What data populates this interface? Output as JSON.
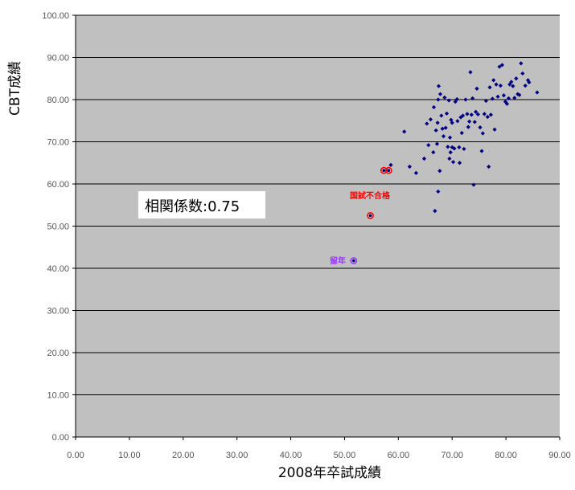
{
  "chart_data": {
    "type": "scatter",
    "xlabel": "2008年卒試成績",
    "ylabel": "CBT成績",
    "xlim": [
      0,
      90
    ],
    "ylim": [
      0,
      100
    ],
    "x_ticks": [
      "0.00",
      "10.00",
      "20.00",
      "30.00",
      "40.00",
      "50.00",
      "60.00",
      "70.00",
      "80.00",
      "90.00"
    ],
    "y_ticks": [
      "0.00",
      "10.00",
      "20.00",
      "30.00",
      "40.00",
      "50.00",
      "60.00",
      "70.00",
      "80.00",
      "90.00",
      "100.00"
    ],
    "grid": "horizontal",
    "plot_background": "#c0c0c0",
    "point_color": "#000080",
    "highlight_color": "#ff0000",
    "repeat_color": "#9933ff",
    "annotation": "相関係数:0.75",
    "points": [
      [
        58.6,
        64.5
      ],
      [
        61.1,
        72.4
      ],
      [
        62.1,
        64.1
      ],
      [
        63.3,
        62.6
      ],
      [
        64.8,
        66.0
      ],
      [
        65.3,
        74.3
      ],
      [
        65.6,
        69.2
      ],
      [
        66.0,
        75.3
      ],
      [
        66.5,
        67.5
      ],
      [
        66.6,
        78.2
      ],
      [
        66.8,
        53.6
      ],
      [
        67.0,
        72.7
      ],
      [
        67.2,
        69.5
      ],
      [
        67.3,
        74.5
      ],
      [
        67.4,
        58.2
      ],
      [
        67.4,
        80.0
      ],
      [
        67.5,
        83.2
      ],
      [
        67.7,
        63.1
      ],
      [
        67.8,
        81.3
      ],
      [
        68.0,
        76.2
      ],
      [
        68.2,
        73.1
      ],
      [
        68.4,
        71.3
      ],
      [
        68.6,
        80.5
      ],
      [
        68.8,
        73.3
      ],
      [
        69.0,
        76.7
      ],
      [
        69.2,
        68.8
      ],
      [
        69.4,
        79.8
      ],
      [
        69.5,
        66.0
      ],
      [
        69.6,
        71.0
      ],
      [
        69.7,
        67.5
      ],
      [
        69.8,
        75.2
      ],
      [
        70.0,
        68.7
      ],
      [
        70.0,
        74.5
      ],
      [
        70.2,
        65.2
      ],
      [
        70.4,
        68.4
      ],
      [
        70.6,
        79.5
      ],
      [
        70.9,
        80.1
      ],
      [
        71.0,
        74.9
      ],
      [
        71.3,
        68.7
      ],
      [
        71.4,
        65.0
      ],
      [
        71.6,
        75.8
      ],
      [
        71.8,
        72.1
      ],
      [
        72.0,
        76.2
      ],
      [
        72.2,
        68.3
      ],
      [
        72.5,
        80.0
      ],
      [
        72.8,
        76.6
      ],
      [
        73.0,
        73.5
      ],
      [
        73.2,
        74.8
      ],
      [
        73.4,
        86.5
      ],
      [
        73.6,
        76.4
      ],
      [
        73.8,
        80.3
      ],
      [
        74.0,
        59.8
      ],
      [
        74.2,
        74.7
      ],
      [
        74.4,
        77.1
      ],
      [
        74.6,
        82.6
      ],
      [
        74.8,
        76.5
      ],
      [
        75.2,
        73.4
      ],
      [
        75.5,
        67.8
      ],
      [
        75.7,
        72.0
      ],
      [
        76.0,
        76.6
      ],
      [
        76.3,
        79.7
      ],
      [
        76.6,
        75.9
      ],
      [
        76.8,
        64.1
      ],
      [
        77.0,
        82.9
      ],
      [
        77.2,
        76.4
      ],
      [
        77.5,
        80.2
      ],
      [
        77.7,
        84.6
      ],
      [
        77.9,
        72.9
      ],
      [
        78.2,
        83.6
      ],
      [
        78.5,
        80.7
      ],
      [
        78.8,
        87.8
      ],
      [
        79.0,
        83.3
      ],
      [
        79.3,
        88.2
      ],
      [
        79.6,
        81.0
      ],
      [
        79.9,
        79.5
      ],
      [
        80.2,
        79.0
      ],
      [
        80.5,
        80.3
      ],
      [
        80.7,
        83.6
      ],
      [
        81.0,
        84.2
      ],
      [
        81.3,
        83.2
      ],
      [
        81.6,
        80.4
      ],
      [
        81.9,
        85.0
      ],
      [
        82.2,
        81.3
      ],
      [
        82.5,
        81.1
      ],
      [
        82.8,
        88.6
      ],
      [
        83.1,
        86.2
      ],
      [
        83.6,
        83.3
      ],
      [
        84.1,
        84.6
      ],
      [
        84.3,
        84.1
      ],
      [
        85.8,
        81.7
      ]
    ],
    "failed_label": "国試不合格",
    "failed_points": [
      [
        54.8,
        52.5
      ],
      [
        57.3,
        63.2
      ],
      [
        58.2,
        63.2
      ]
    ],
    "repeat_label": "留年",
    "repeat_points": [
      [
        51.7,
        41.8
      ]
    ]
  }
}
